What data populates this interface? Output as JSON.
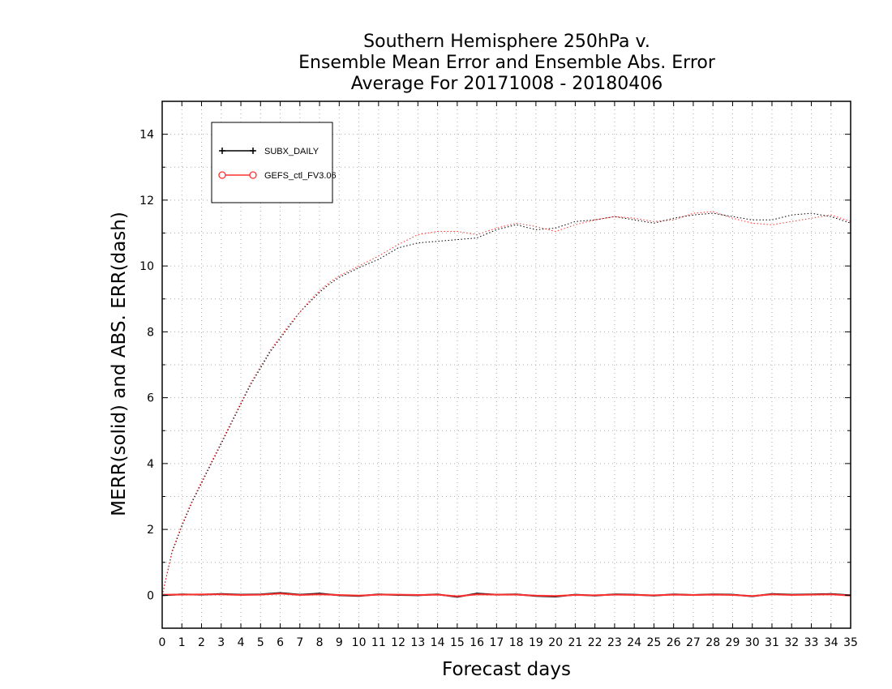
{
  "chart_data": {
    "type": "line",
    "title_lines": [
      "Southern Hemisphere 250hPa v.",
      "Ensemble Mean Error and Ensemble Abs. Error",
      "Average For 20171008 - 20180406"
    ],
    "xlabel": "Forecast days",
    "ylabel": "MERR(solid) and ABS. ERR(dash)",
    "xlim": [
      0,
      35
    ],
    "ylim": [
      -1,
      15
    ],
    "xticks": [
      0,
      1,
      2,
      3,
      4,
      5,
      6,
      7,
      8,
      9,
      10,
      11,
      12,
      13,
      14,
      15,
      16,
      17,
      18,
      19,
      20,
      21,
      22,
      23,
      24,
      25,
      26,
      27,
      28,
      29,
      30,
      31,
      32,
      33,
      34,
      35
    ],
    "yticks": [
      0,
      2,
      4,
      6,
      8,
      10,
      12,
      14
    ],
    "grid": true,
    "legend_position": "top-left",
    "series": [
      {
        "name": "SUBX_DAILY",
        "color": "#000000",
        "marker": "plus",
        "abs_err_x": [
          0,
          0.5,
          1,
          1.5,
          2,
          2.5,
          3,
          3.5,
          4,
          4.5,
          5,
          5.5,
          6,
          6.5,
          7,
          7.5,
          8,
          8.5,
          9,
          9.5,
          10,
          11,
          12,
          13,
          14,
          15,
          16,
          17,
          18,
          19,
          20,
          21,
          22,
          23,
          24,
          25,
          26,
          27,
          28,
          29,
          30,
          31,
          32,
          33,
          34,
          35
        ],
        "abs_err_y": [
          0,
          1.3,
          2.1,
          2.8,
          3.4,
          4.0,
          4.6,
          5.2,
          5.8,
          6.4,
          6.9,
          7.4,
          7.8,
          8.2,
          8.6,
          8.9,
          9.2,
          9.45,
          9.65,
          9.8,
          9.95,
          10.2,
          10.55,
          10.7,
          10.75,
          10.8,
          10.85,
          11.1,
          11.25,
          11.1,
          11.15,
          11.35,
          11.4,
          11.5,
          11.4,
          11.3,
          11.45,
          11.55,
          11.6,
          11.5,
          11.4,
          11.4,
          11.55,
          11.6,
          11.5,
          11.3
        ],
        "merr_x": [
          0,
          1,
          2,
          3,
          4,
          5,
          6,
          7,
          8,
          9,
          10,
          11,
          12,
          13,
          14,
          15,
          16,
          17,
          18,
          19,
          20,
          21,
          22,
          23,
          24,
          25,
          26,
          27,
          28,
          29,
          30,
          31,
          32,
          33,
          34,
          35
        ],
        "merr_y": [
          0,
          0.03,
          0.02,
          0.04,
          0.02,
          0.03,
          0.07,
          0.02,
          0.05,
          0.0,
          -0.02,
          0.03,
          0.01,
          0.0,
          0.03,
          -0.05,
          0.05,
          0.02,
          0.03,
          -0.02,
          -0.04,
          0.02,
          -0.01,
          0.03,
          0.02,
          -0.01,
          0.03,
          0.01,
          0.03,
          0.02,
          -0.03,
          0.04,
          0.02,
          0.03,
          0.04,
          0.0
        ]
      },
      {
        "name": "GEFS_ctl_FV3.06",
        "color": "#ff3030",
        "marker": "circle",
        "abs_err_x": [
          0,
          0.5,
          1,
          1.5,
          2,
          2.5,
          3,
          3.5,
          4,
          4.5,
          5,
          5.5,
          6,
          6.5,
          7,
          7.5,
          8,
          8.5,
          9,
          9.5,
          10,
          11,
          12,
          13,
          14,
          15,
          16,
          17,
          18,
          19,
          20,
          21,
          22,
          23,
          24,
          25,
          26,
          27,
          28,
          29,
          30,
          31,
          32,
          33,
          34,
          35
        ],
        "abs_err_y": [
          0,
          1.35,
          2.15,
          2.85,
          3.45,
          4.05,
          4.65,
          5.25,
          5.85,
          6.45,
          6.95,
          7.45,
          7.85,
          8.25,
          8.6,
          8.95,
          9.25,
          9.5,
          9.7,
          9.85,
          10.0,
          10.3,
          10.65,
          10.95,
          11.05,
          11.05,
          10.95,
          11.15,
          11.3,
          11.2,
          11.05,
          11.25,
          11.4,
          11.5,
          11.45,
          11.35,
          11.4,
          11.6,
          11.65,
          11.45,
          11.3,
          11.25,
          11.35,
          11.45,
          11.55,
          11.35
        ],
        "merr_x": [
          0,
          1,
          2,
          3,
          4,
          5,
          6,
          7,
          8,
          9,
          10,
          11,
          12,
          13,
          14,
          15,
          16,
          17,
          18,
          19,
          20,
          21,
          22,
          23,
          24,
          25,
          26,
          27,
          28,
          29,
          30,
          31,
          32,
          33,
          34,
          35
        ],
        "merr_y": [
          0.02,
          0.02,
          0.03,
          0.03,
          0.01,
          0.02,
          0.05,
          0.01,
          0.03,
          0.01,
          -0.01,
          0.02,
          0.02,
          0.01,
          0.02,
          -0.03,
          0.03,
          0.02,
          0.02,
          -0.01,
          -0.02,
          0.01,
          0.0,
          0.02,
          0.01,
          0.0,
          0.02,
          0.01,
          0.02,
          0.01,
          -0.02,
          0.03,
          0.01,
          0.02,
          0.03,
          -0.01
        ]
      }
    ]
  }
}
